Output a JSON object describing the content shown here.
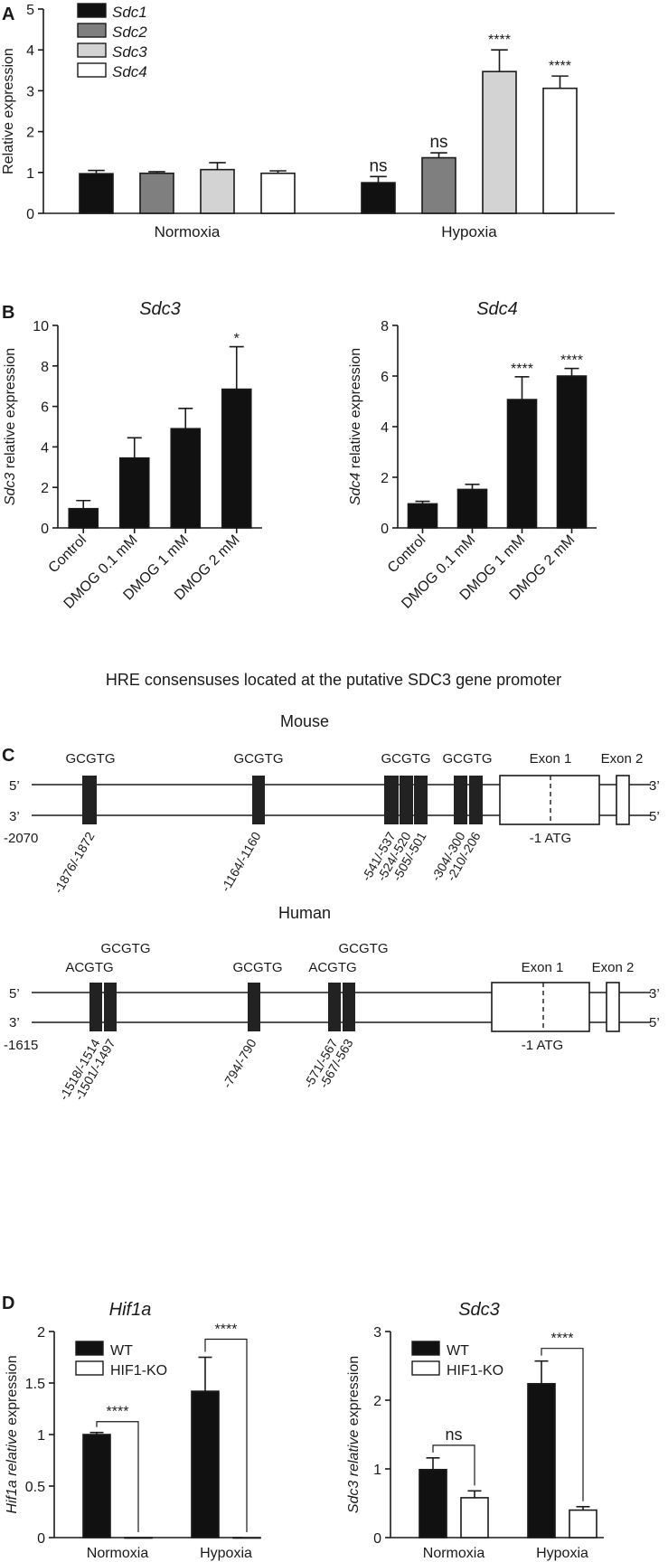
{
  "chart_data": [
    {
      "panel": "A",
      "type": "bar",
      "ylabel": "Relative expression",
      "ylim": [
        0,
        5
      ],
      "yticks": [
        0,
        1,
        2,
        3,
        4,
        5
      ],
      "categories": [
        "Normoxia",
        "Hypoxia"
      ],
      "legend_position": "top-left",
      "series": [
        {
          "name": "Sdc1",
          "color": "#111111",
          "values": [
            0.97,
            0.75
          ],
          "errors": [
            0.08,
            0.15
          ],
          "annotations": [
            "",
            "ns"
          ]
        },
        {
          "name": "Sdc2",
          "color": "#7f7f7f",
          "values": [
            0.98,
            1.36
          ],
          "errors": [
            0.04,
            0.12
          ],
          "annotations": [
            "",
            "ns"
          ]
        },
        {
          "name": "Sdc3",
          "color": "#d3d3d3",
          "values": [
            1.07,
            3.47
          ],
          "errors": [
            0.17,
            0.53
          ],
          "annotations": [
            "",
            "****"
          ]
        },
        {
          "name": "Sdc4",
          "color": "#ffffff",
          "values": [
            0.98,
            3.06
          ],
          "errors": [
            0.06,
            0.3
          ],
          "annotations": [
            "",
            "****"
          ]
        }
      ]
    },
    {
      "panel": "B",
      "type": "bar",
      "title": "Sdc3",
      "ylabel": "Sdc3 relative expression",
      "ylim": [
        0,
        10
      ],
      "yticks": [
        0,
        2,
        4,
        6,
        8,
        10
      ],
      "categories": [
        "Control",
        "DMOG 0.1 mM",
        "DMOG 1 mM",
        "DMOG 2 mM"
      ],
      "values": [
        0.95,
        3.45,
        4.9,
        6.85
      ],
      "errors": [
        0.4,
        1.0,
        1.0,
        2.1
      ],
      "annotations": [
        "",
        "",
        "",
        "*"
      ]
    },
    {
      "type": "bar",
      "title": "Sdc4",
      "ylabel": "Sdc4 relative expression",
      "ylim": [
        0,
        8
      ],
      "yticks": [
        0,
        2,
        4,
        6,
        8
      ],
      "categories": [
        "Control",
        "DMOG 0.1 mM",
        "DMOG 1 mM",
        "DMOG 2 mM"
      ],
      "values": [
        0.95,
        1.52,
        5.07,
        6.0
      ],
      "errors": [
        0.1,
        0.2,
        0.9,
        0.3
      ],
      "annotations": [
        "",
        "",
        "****",
        "****"
      ]
    },
    {
      "panel": "D",
      "type": "bar",
      "title": "Hif1a",
      "ylabel": "Hif1a relative expression",
      "ylim": [
        0,
        2
      ],
      "yticks": [
        "0",
        "0.5",
        "1",
        "1.5",
        "2"
      ],
      "categories": [
        "Normoxia",
        "Hypoxia"
      ],
      "legend_position": "top-left",
      "series": [
        {
          "name": "WT",
          "color": "#111111",
          "values": [
            1.0,
            1.42
          ],
          "errors": [
            0.02,
            0.33
          ]
        },
        {
          "name": "HIF1-KO",
          "color": "#ffffff",
          "values": [
            0.0,
            0.0
          ],
          "errors": [
            0,
            0
          ]
        }
      ],
      "comparisons": [
        "****",
        "****"
      ]
    },
    {
      "type": "bar",
      "title": "Sdc3",
      "ylabel": "Sdc3 relative expression",
      "ylim": [
        0,
        3
      ],
      "yticks": [
        0,
        1,
        2,
        3
      ],
      "categories": [
        "Normoxia",
        "Hypoxia"
      ],
      "legend_position": "top-left",
      "series": [
        {
          "name": "WT",
          "color": "#111111",
          "values": [
            0.99,
            2.24
          ],
          "errors": [
            0.17,
            0.33
          ]
        },
        {
          "name": "HIF1-KO",
          "color": "#ffffff",
          "values": [
            0.58,
            0.4
          ],
          "errors": [
            0.1,
            0.05
          ]
        }
      ],
      "comparisons": [
        "ns",
        "****"
      ]
    }
  ],
  "panel_c": {
    "heading": "HRE consensuses located at the putative SDC3 gene promoter",
    "mouse": {
      "species": "Mouse",
      "start": "-2070",
      "strand_top": "5’",
      "strand_bottom": "3’",
      "strand_top_right": "3’",
      "strand_bottom_right": "5’",
      "motifs": [
        "GCGTG",
        "GCGTG",
        "GCGTG",
        "GCGTG"
      ],
      "positions": [
        "-1876/-1872",
        "-1164/-1160",
        "-541/-537",
        "-524/-520",
        "-505/-501",
        "-304/-300",
        "-210/-206"
      ],
      "exon1": "Exon 1",
      "exon2": "Exon 2",
      "atg": "-1 ATG"
    },
    "human": {
      "species": "Human",
      "start": "-1615",
      "strand_top": "5’",
      "strand_bottom": "3’",
      "strand_top_right": "3’",
      "strand_bottom_right": "5’",
      "motifs": [
        "ACGTG",
        "GCGTG",
        "GCGTG",
        "ACGTG",
        "GCGTG"
      ],
      "positions": [
        "-1518/-1514",
        "-1501/-1497",
        "-794/-790",
        "-571/-567",
        "-567/-563"
      ],
      "exon1": "Exon 1",
      "exon2": "Exon 2",
      "atg": "-1 ATG"
    }
  },
  "panel_labels": [
    "A",
    "B",
    "C",
    "D"
  ]
}
